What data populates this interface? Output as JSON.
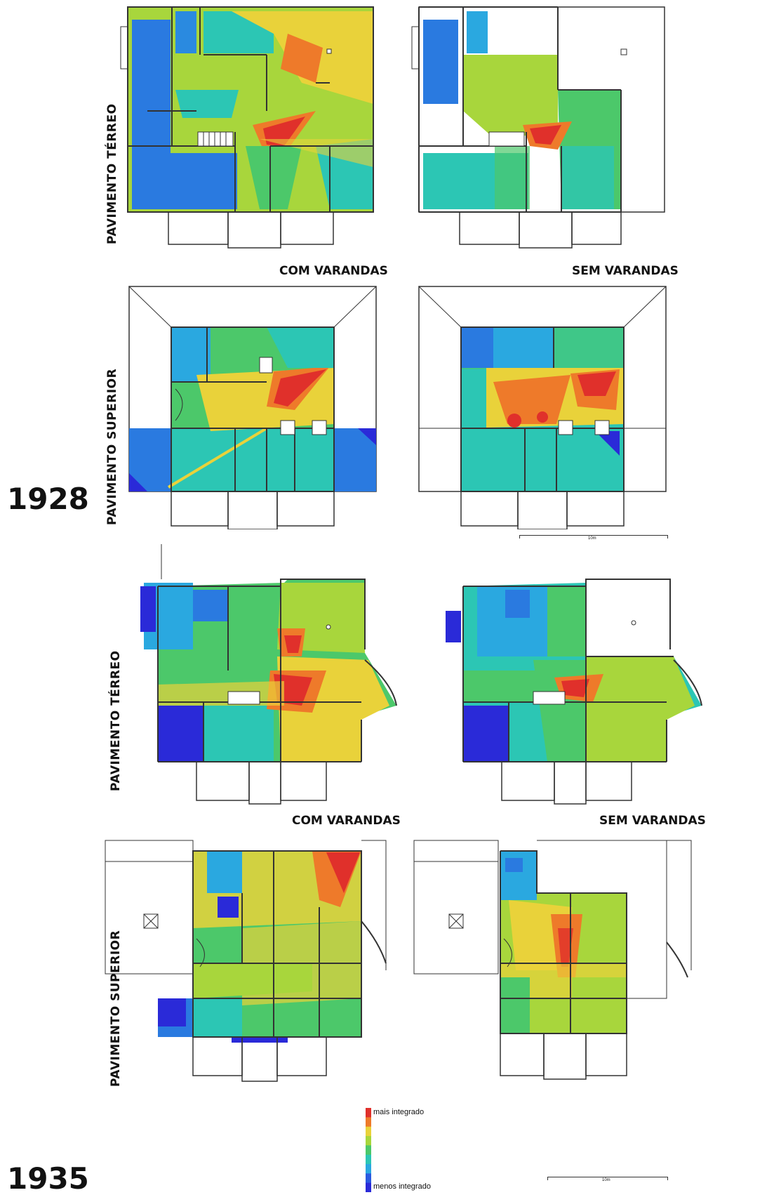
{
  "years": {
    "y1928": "1928",
    "y1935": "1935"
  },
  "floors": {
    "ground": "PAVIMENTO  TÉRREO",
    "upper": "PAVIMENTO  SUPERIOR"
  },
  "variants": {
    "with": "COM VARANDAS",
    "without": "SEM VARANDAS"
  },
  "legend": {
    "high": "mais integrado",
    "low": "menos integrado",
    "colors": [
      "#e0302b",
      "#ee7a2a",
      "#e9d23a",
      "#a8d63c",
      "#4cc86a",
      "#2cc6b4",
      "#2aa8e0",
      "#2a5ae0",
      "#2a2ad8"
    ]
  },
  "scale_bar": {
    "label": "10m"
  }
}
